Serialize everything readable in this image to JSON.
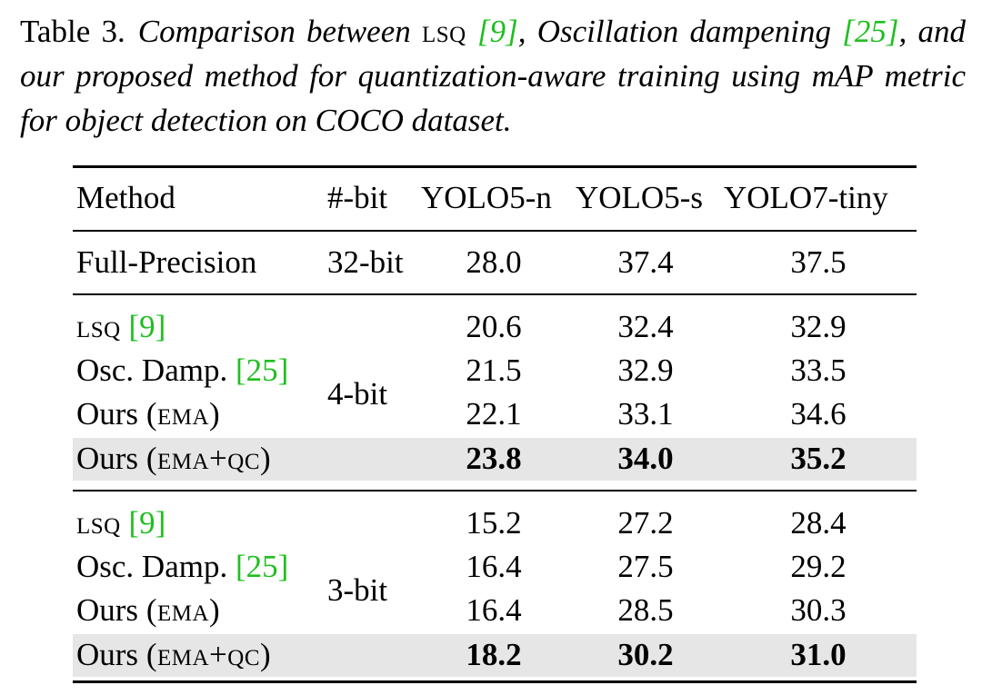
{
  "caption": {
    "label": "Table 3.",
    "text_pre": "Comparison between",
    "lsq": "LSQ",
    "cite_lsq": "[9]",
    "text_mid": ", Oscillation dampening",
    "cite_osc": "[25]",
    "text_post": ", and our proposed method for quantization-aware training using mAP metric for object detection on COCO dataset."
  },
  "table": {
    "headers": [
      "Method",
      "#-bit",
      "YOLO5-n",
      "YOLO5-s",
      "YOLO7-tiny"
    ],
    "full_precision": {
      "method": "Full-Precision",
      "bit": "32-bit",
      "values": [
        "28.0",
        "37.4",
        "37.5"
      ]
    },
    "group_4bit": {
      "bit": "4-bit",
      "rows": [
        {
          "method": "LSQ",
          "cite": "[9]",
          "suffix": "",
          "values": [
            "20.6",
            "32.4",
            "32.9"
          ],
          "bold": false
        },
        {
          "method": "Osc. Damp.",
          "cite": "[25]",
          "suffix": "",
          "values": [
            "21.5",
            "32.9",
            "33.5"
          ],
          "bold": false
        },
        {
          "method": "Ours",
          "cite": "",
          "suffix": "(EMA)",
          "values": [
            "22.1",
            "33.1",
            "34.6"
          ],
          "bold": false
        },
        {
          "method": "Ours",
          "cite": "",
          "suffix": "(EMA+QC)",
          "values": [
            "23.8",
            "34.0",
            "35.2"
          ],
          "bold": true
        }
      ]
    },
    "group_3bit": {
      "bit": "3-bit",
      "rows": [
        {
          "method": "LSQ",
          "cite": "[9]",
          "suffix": "",
          "values": [
            "15.2",
            "27.2",
            "28.4"
          ],
          "bold": false
        },
        {
          "method": "Osc. Damp.",
          "cite": "[25]",
          "suffix": "",
          "values": [
            "16.4",
            "27.5",
            "29.2"
          ],
          "bold": false
        },
        {
          "method": "Ours",
          "cite": "",
          "suffix": "(EMA)",
          "values": [
            "16.4",
            "28.5",
            "30.3"
          ],
          "bold": false
        },
        {
          "method": "Ours",
          "cite": "",
          "suffix": "(EMA+QC)",
          "values": [
            "18.2",
            "30.2",
            "31.0"
          ],
          "bold": true
        }
      ]
    }
  },
  "colors": {
    "citation": "#1fbf1f",
    "highlight_row": "#e6e6e6"
  }
}
